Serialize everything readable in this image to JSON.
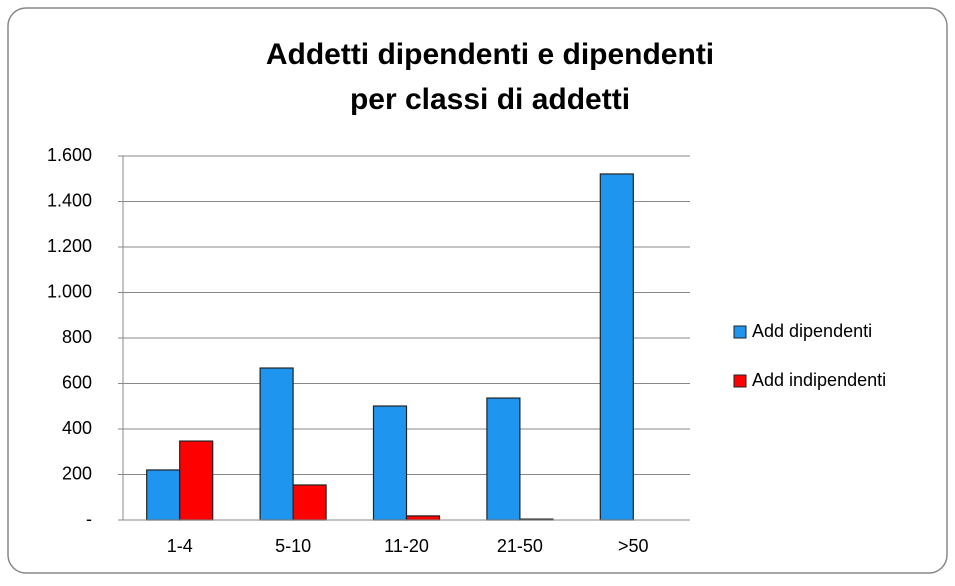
{
  "chart_data": {
    "type": "bar",
    "title": [
      "Addetti dipendenti e dipendenti",
      "per classi di addetti"
    ],
    "categories": [
      "1-4",
      "5-10",
      "11-20",
      "21-50",
      ">50"
    ],
    "series": [
      {
        "name": "Add dipendenti",
        "color": "#1e96f0",
        "values": [
          220,
          668,
          501,
          536,
          1521
        ]
      },
      {
        "name": "Add indipendenti",
        "color": "#ff0000",
        "values": [
          347,
          154,
          18,
          4,
          0
        ]
      }
    ],
    "ylim": [
      0,
      1600
    ],
    "yticks": [
      {
        "value": 0,
        "label": "-"
      },
      200,
      400,
      600,
      800,
      {
        "value": 1000,
        "label": "1.000"
      },
      {
        "value": 1200,
        "label": "1.200"
      },
      {
        "value": 1400,
        "label": "1.400"
      },
      {
        "value": 1600,
        "label": "1.600"
      }
    ],
    "grid": true,
    "legend": "right"
  }
}
